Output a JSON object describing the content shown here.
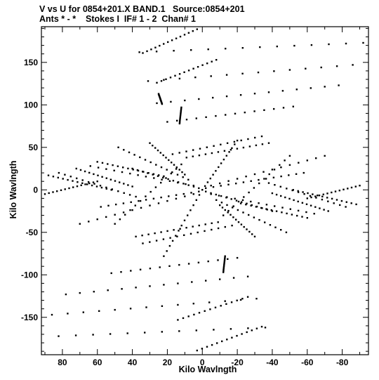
{
  "chart_data": {
    "type": "scatter",
    "title": "V vs U for 0854+201.X BAND.1   Source:0854+201",
    "subtitle": "Ants * - *    Stokes I  IF# 1 - 2  Chan# 1",
    "xlabel": "Kilo Wavlngth",
    "ylabel": "Kilo Wavlngth",
    "xlim": [
      92,
      -95
    ],
    "ylim": [
      -194,
      192
    ],
    "x_inverted": true,
    "grid": false,
    "x_ticks": [
      80,
      60,
      40,
      20,
      0,
      -20,
      -40,
      -60,
      -80
    ],
    "x_tick_labels": [
      "80",
      "60",
      "40",
      "20",
      "0",
      "-20",
      "-40",
      "-60",
      "-80"
    ],
    "y_ticks": [
      -150,
      -100,
      -50,
      0,
      50,
      100,
      150
    ],
    "y_tick_labels": [
      "-150",
      "-100",
      "-50",
      "0",
      "50",
      "100",
      "150"
    ],
    "marker_color": "#000000",
    "tracks": [
      {
        "u0": 3,
        "v0": 189,
        "u1": 34,
        "v1": 161
      },
      {
        "u0": -8,
        "v0": 153,
        "u1": 26,
        "v1": 126
      },
      {
        "u0": 25,
        "v0": 113,
        "u1": 23,
        "v1": 101
      },
      {
        "u0": 12,
        "v0": 97,
        "u1": 13,
        "v1": 78
      },
      {
        "u0": 36,
        "v0": 162,
        "u1": -92,
        "v1": 173
      },
      {
        "u0": 31,
        "v0": 128,
        "u1": -86,
        "v1": 147
      },
      {
        "u0": 26,
        "v0": 102,
        "u1": -78,
        "v1": 123
      },
      {
        "u0": 20,
        "v0": 80,
        "u1": -52,
        "v1": 98
      },
      {
        "u0": 17,
        "v0": 42,
        "u1": -34,
        "v1": 63
      },
      {
        "u0": 9,
        "v0": 38,
        "u1": -38,
        "v1": 55
      },
      {
        "u0": 3,
        "v0": -189,
        "u1": -34,
        "v1": -161
      },
      {
        "u0": 14,
        "v0": -153,
        "u1": -26,
        "v1": -126
      },
      {
        "u0": -12,
        "v0": -97,
        "u1": -13,
        "v1": -78
      },
      {
        "u0": -36,
        "v0": -162,
        "u1": 92,
        "v1": -173
      },
      {
        "u0": -31,
        "v0": -128,
        "u1": 86,
        "v1": -147
      },
      {
        "u0": -26,
        "v0": -102,
        "u1": 78,
        "v1": -123
      },
      {
        "u0": -20,
        "v0": -80,
        "u1": 52,
        "v1": -98
      },
      {
        "u0": -17,
        "v0": -42,
        "u1": 34,
        "v1": -63
      },
      {
        "u0": -9,
        "v0": -38,
        "u1": 38,
        "v1": -55
      },
      {
        "u0": 0,
        "v0": 0,
        "u1": -20,
        "v1": 58
      },
      {
        "u0": 0,
        "v0": 0,
        "u1": 22,
        "v1": -78
      },
      {
        "u0": -2,
        "v0": 2,
        "u1": -58,
        "v1": 20
      },
      {
        "u0": 2,
        "v0": -2,
        "u1": 58,
        "v1": -20
      },
      {
        "u0": -2,
        "v0": -2,
        "u1": -40,
        "v1": -25
      },
      {
        "u0": 2,
        "v0": 2,
        "u1": 40,
        "v1": 25
      },
      {
        "u0": -5,
        "v0": 5,
        "u1": -70,
        "v1": 40
      },
      {
        "u0": 5,
        "v0": -5,
        "u1": 70,
        "v1": -40
      },
      {
        "u0": -5,
        "v0": -5,
        "u1": -64,
        "v1": -28
      },
      {
        "u0": 5,
        "v0": 5,
        "u1": 64,
        "v1": 28
      },
      {
        "u0": 8,
        "v0": 12,
        "u1": 48,
        "v1": 50
      },
      {
        "u0": -8,
        "v0": -12,
        "u1": -48,
        "v1": -50
      },
      {
        "u0": 82,
        "v0": 20,
        "u1": 38,
        "v1": -8
      },
      {
        "u0": -82,
        "v0": -20,
        "u1": -38,
        "v1": 8
      },
      {
        "u0": 88,
        "v0": 17,
        "u1": 52,
        "v1": 0
      },
      {
        "u0": -88,
        "v0": -17,
        "u1": -52,
        "v1": 0
      },
      {
        "u0": 72,
        "v0": 25,
        "u1": 40,
        "v1": 4
      },
      {
        "u0": -72,
        "v0": -25,
        "u1": -40,
        "v1": -4
      },
      {
        "u0": 60,
        "v0": 33,
        "u1": 22,
        "v1": 16
      },
      {
        "u0": -60,
        "v0": -33,
        "u1": -22,
        "v1": -16
      },
      {
        "u0": 50,
        "v0": -40,
        "u1": 12,
        "v1": 30
      },
      {
        "u0": -50,
        "v0": 40,
        "u1": -12,
        "v1": -30
      },
      {
        "u0": 90,
        "v0": -5,
        "u1": 60,
        "v1": 10
      },
      {
        "u0": -90,
        "v0": 5,
        "u1": -60,
        "v1": -10
      },
      {
        "u0": 30,
        "v0": 55,
        "u1": 10,
        "v1": 18
      },
      {
        "u0": -30,
        "v0": -55,
        "u1": -10,
        "v1": -18
      }
    ],
    "points_per_track": 14
  }
}
